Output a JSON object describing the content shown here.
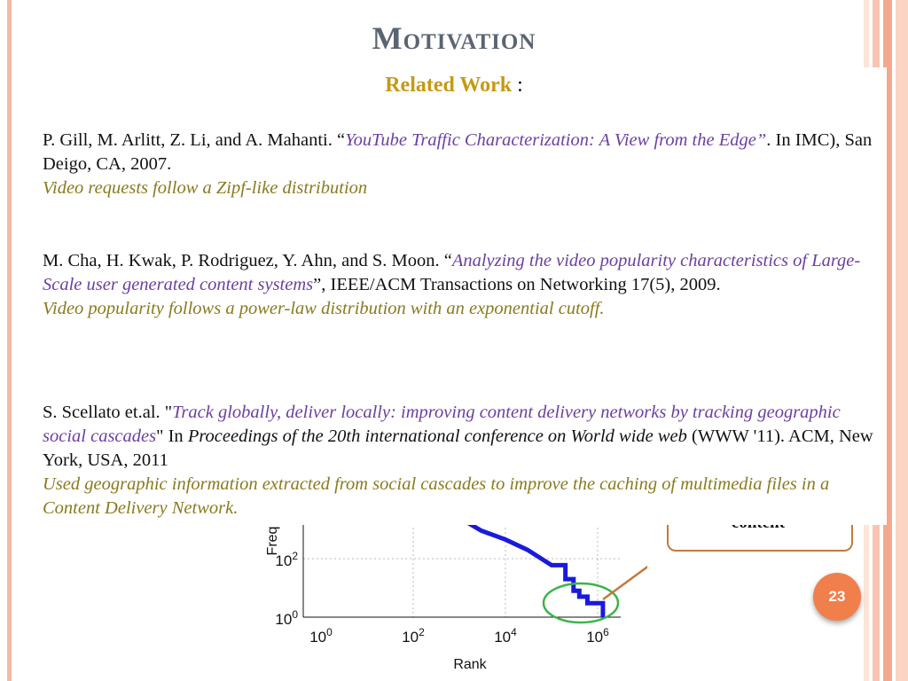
{
  "slide": {
    "title": "Motivation",
    "subtitle_label": "Related Work",
    "subtitle_suffix": " :",
    "page_number": "23"
  },
  "references": [
    {
      "pre": "P. Gill, M. Arlitt, Z. Li, and A. Mahanti. “",
      "title": "YouTube Traffic Characterization: A View from the Edge”",
      "post": ". In IMC), San Deigo, CA, 2007.",
      "note": "Video requests follow a Zipf-like distribution"
    },
    {
      "pre": "M. Cha, H. Kwak, P. Rodriguez, Y. Ahn, and S. Moon. “",
      "title": "Analyzing the video popularity characteristics of Large-Scale user generated content systems",
      "post": "”, IEEE/ACM Transactions on Networking 17(5), 2009.",
      "note": "Video popularity follows a power-law distribution with an exponential cutoff."
    },
    {
      "pre": "S. Scellato et.al. \"",
      "title": "Track globally, deliver locally: improving content delivery networks by tracking geographic social cascades",
      "post": "\" In ",
      "book": "Proceedings of the 20th international conference on World wide web",
      "post2": " (WWW '11). ACM, New York, USA, 2011",
      "note": "Used geographic information extracted from social cascades to improve the caching of multimedia files in a Content Delivery Network."
    }
  ],
  "callout": {
    "text": "content"
  },
  "chart_data": {
    "type": "line",
    "xlabel": "Rank",
    "ylabel": "Freq",
    "x_scale": "log",
    "y_scale": "log",
    "grid": true,
    "x_ticks": [
      {
        "base": "10",
        "exp": "0"
      },
      {
        "base": "10",
        "exp": "2"
      },
      {
        "base": "10",
        "exp": "4"
      },
      {
        "base": "10",
        "exp": "6"
      }
    ],
    "y_ticks": [
      {
        "base": "10",
        "exp": "0"
      },
      {
        "base": "10",
        "exp": "2"
      }
    ],
    "series": [
      {
        "color": "#1a1adc",
        "x": [
          1000,
          3000,
          10000,
          30000,
          100000,
          200000,
          300000,
          400000,
          600000,
          1000000,
          1300000
        ],
        "y": [
          2500,
          900,
          450,
          200,
          60,
          20,
          8,
          5,
          3,
          3,
          1
        ]
      }
    ],
    "annotation": {
      "shape": "ellipse",
      "color": "#3cb34a"
    }
  },
  "colors": {
    "title": "#5a6472",
    "subtitle": "#c49a14",
    "paper_title": "#6b3fa0",
    "note": "#8a7a1e",
    "accent": "#f07f4c",
    "callout_border": "#c27a3e"
  }
}
